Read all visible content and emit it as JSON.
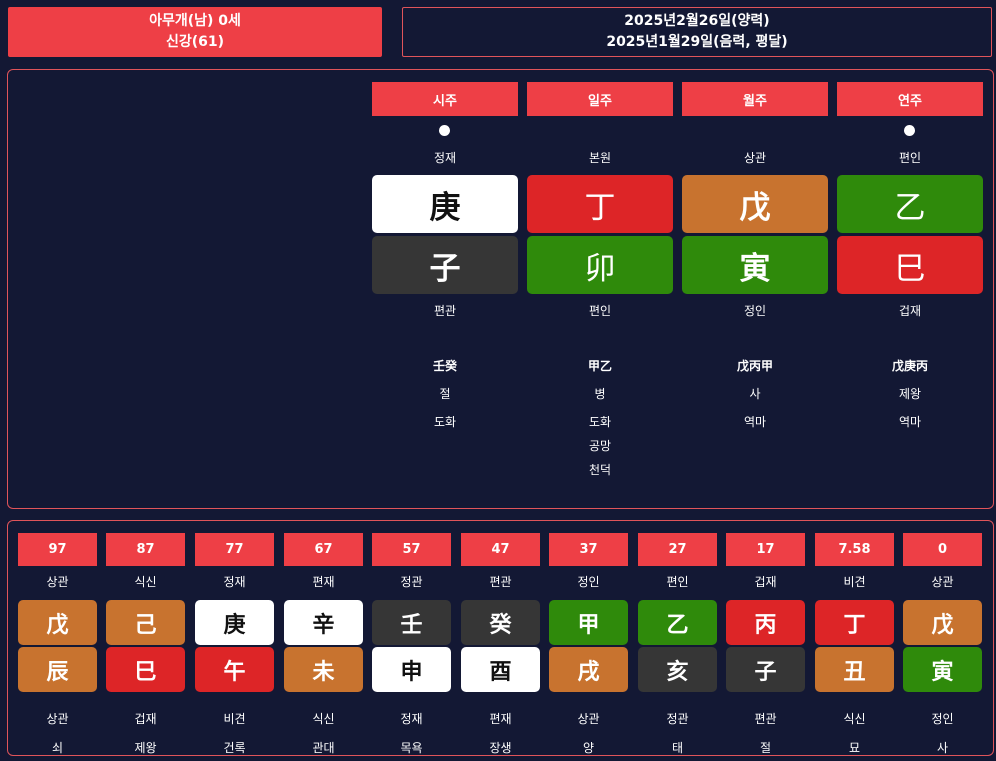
{
  "header": {
    "name_line": "아무개(남) 0세",
    "strength_line": "신강(61)",
    "solar_date": "2025년2월26일(양력)",
    "lunar_date": "2025년1월29일(음력, 평달)"
  },
  "pillars": [
    {
      "title": "시주",
      "dot": true,
      "stem_sipsin": "정재",
      "stem": "庚",
      "stem_color": "white",
      "branch": "子",
      "branch_color": "dark",
      "branch_sipsin": "편관",
      "hidden": "壬癸",
      "unseong": "절",
      "sinsal": [
        "도화"
      ]
    },
    {
      "title": "일주",
      "dot": false,
      "stem_sipsin": "본원",
      "stem": "丁",
      "stem_color": "red",
      "branch": "卯",
      "branch_color": "green",
      "branch_sipsin": "편인",
      "hidden": "甲乙",
      "unseong": "병",
      "sinsal": [
        "도화",
        "공망",
        "천덕"
      ]
    },
    {
      "title": "월주",
      "dot": false,
      "stem_sipsin": "상관",
      "stem": "戊",
      "stem_color": "orange",
      "branch": "寅",
      "branch_color": "green",
      "branch_sipsin": "정인",
      "hidden": "戊丙甲",
      "unseong": "사",
      "sinsal": [
        "역마"
      ]
    },
    {
      "title": "연주",
      "dot": true,
      "stem_sipsin": "편인",
      "stem": "乙",
      "stem_color": "green",
      "branch": "巳",
      "branch_color": "red",
      "branch_sipsin": "겁재",
      "hidden": "戊庚丙",
      "unseong": "제왕",
      "sinsal": [
        "역마"
      ]
    }
  ],
  "daeun": [
    {
      "age": "97",
      "stem_sipsin": "상관",
      "stem": "戊",
      "stem_color": "orange",
      "branch": "辰",
      "branch_color": "orange",
      "branch_sipsin": "상관",
      "unseong": "쇠"
    },
    {
      "age": "87",
      "stem_sipsin": "식신",
      "stem": "己",
      "stem_color": "orange",
      "branch": "巳",
      "branch_color": "red",
      "branch_sipsin": "겁재",
      "unseong": "제왕"
    },
    {
      "age": "77",
      "stem_sipsin": "정재",
      "stem": "庚",
      "stem_color": "white",
      "branch": "午",
      "branch_color": "red",
      "branch_sipsin": "비견",
      "unseong": "건록"
    },
    {
      "age": "67",
      "stem_sipsin": "편재",
      "stem": "辛",
      "stem_color": "white",
      "branch": "未",
      "branch_color": "orange",
      "branch_sipsin": "식신",
      "unseong": "관대"
    },
    {
      "age": "57",
      "stem_sipsin": "정관",
      "stem": "壬",
      "stem_color": "dark",
      "branch": "申",
      "branch_color": "white",
      "branch_sipsin": "정재",
      "unseong": "목욕"
    },
    {
      "age": "47",
      "stem_sipsin": "편관",
      "stem": "癸",
      "stem_color": "dark",
      "branch": "酉",
      "branch_color": "white",
      "branch_sipsin": "편재",
      "unseong": "장생"
    },
    {
      "age": "37",
      "stem_sipsin": "정인",
      "stem": "甲",
      "stem_color": "green",
      "branch": "戌",
      "branch_color": "orange",
      "branch_sipsin": "상관",
      "unseong": "양"
    },
    {
      "age": "27",
      "stem_sipsin": "편인",
      "stem": "乙",
      "stem_color": "green",
      "branch": "亥",
      "branch_color": "dark",
      "branch_sipsin": "정관",
      "unseong": "태"
    },
    {
      "age": "17",
      "stem_sipsin": "겁재",
      "stem": "丙",
      "stem_color": "red",
      "branch": "子",
      "branch_color": "dark",
      "branch_sipsin": "편관",
      "unseong": "절"
    },
    {
      "age": "7.58",
      "stem_sipsin": "비견",
      "stem": "丁",
      "stem_color": "red",
      "branch": "丑",
      "branch_color": "orange",
      "branch_sipsin": "식신",
      "unseong": "묘"
    },
    {
      "age": "0",
      "stem_sipsin": "상관",
      "stem": "戊",
      "stem_color": "orange",
      "branch": "寅",
      "branch_color": "green",
      "branch_sipsin": "정인",
      "unseong": "사"
    }
  ]
}
